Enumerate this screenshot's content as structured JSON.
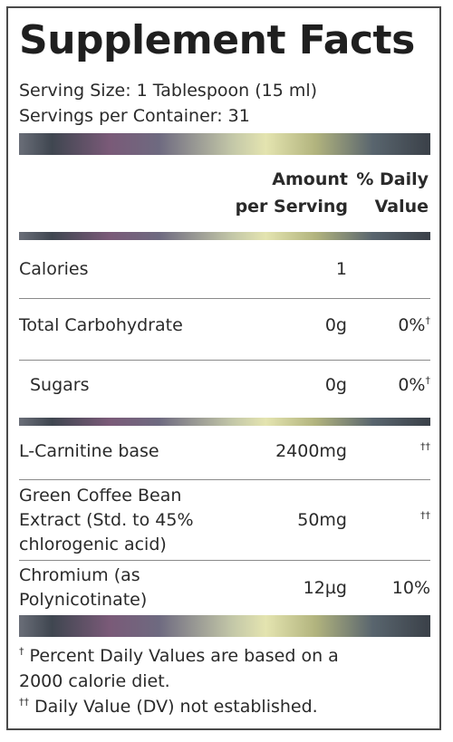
{
  "title": "Supplement Facts",
  "serving_size": "Serving Size: 1 Tablespoon (15 ml)",
  "servings_per_container": "Servings per Container: 31",
  "header": {
    "amount_line1": "Amount",
    "amount_line2": "per Serving",
    "dv_line1": "% Daily",
    "dv_line2": "Value"
  },
  "rows": [
    {
      "name": "Calories",
      "amount": "1",
      "dv": "",
      "dv_mark": ""
    },
    {
      "name": "Total Carbohydrate",
      "amount": "0g",
      "dv": "0%",
      "dv_mark": "†"
    },
    {
      "name": "Sugars",
      "amount": "0g",
      "dv": "0%",
      "dv_mark": "†"
    },
    {
      "name": "L-Carnitine base",
      "amount": "2400mg",
      "dv": "",
      "dv_mark": "††"
    },
    {
      "name_lines": [
        "Green Coffee Bean",
        "Extract (Std. to 45%",
        "chlorogenic acid)"
      ],
      "amount": "50mg",
      "dv": "",
      "dv_mark": "††"
    },
    {
      "name_lines": [
        "Chromium (as",
        "Polynicotinate)"
      ],
      "amount": "12µg",
      "dv": "10%",
      "dv_mark": ""
    }
  ],
  "footnotes": {
    "line1_mark": "†",
    "line1": " Percent Daily Values are based on a",
    "line2": "2000 calorie diet.",
    "line3_mark": "††",
    "line3": " Daily Value (DV) not established."
  }
}
